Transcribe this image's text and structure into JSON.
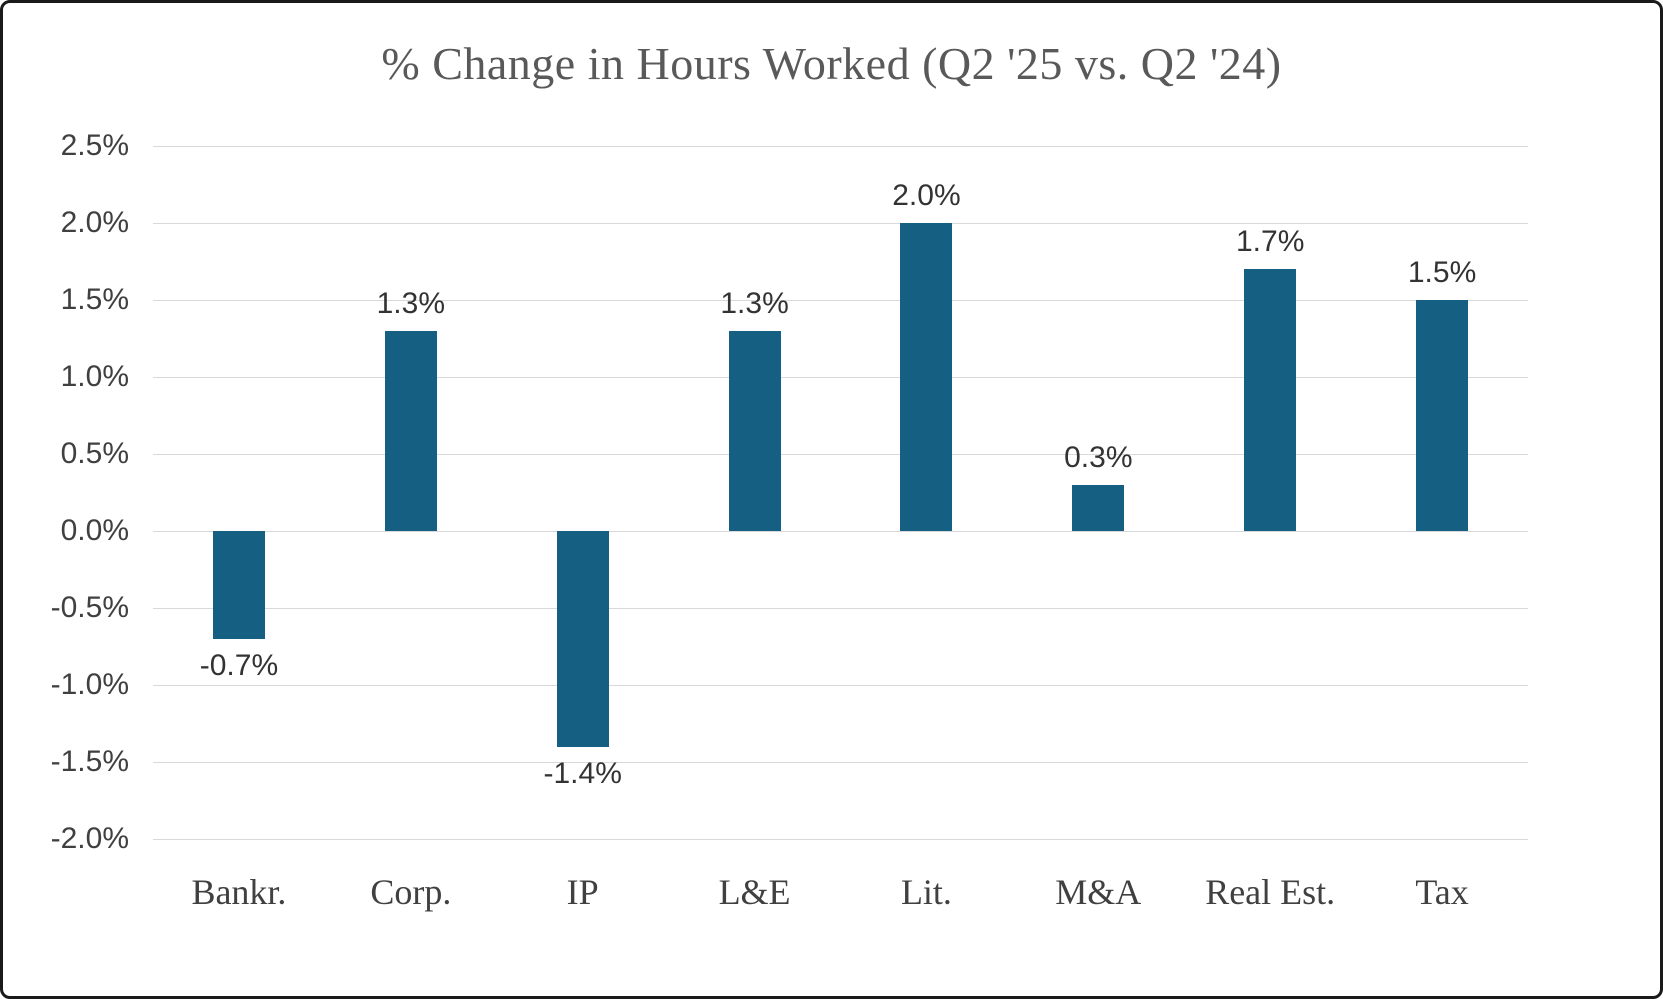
{
  "chart": {
    "title": "% Change in Hours Worked (Q2 '25 vs. Q2 '24)"
  },
  "chart_data": {
    "type": "bar",
    "title": "% Change in Hours Worked (Q2 '25 vs. Q2 '24)",
    "categories": [
      "Bankr.",
      "Corp.",
      "IP",
      "L&E",
      "Lit.",
      "M&A",
      "Real Est.",
      "Tax"
    ],
    "values": [
      -0.7,
      1.3,
      -1.4,
      1.3,
      2.0,
      0.3,
      1.7,
      1.5
    ],
    "value_labels": [
      "-0.7%",
      "1.3%",
      "-1.4%",
      "1.3%",
      "2.0%",
      "0.3%",
      "1.7%",
      "1.5%"
    ],
    "xlabel": "",
    "ylabel": "",
    "ylim": [
      -2.0,
      2.5
    ],
    "ytick_step": 0.5,
    "ytick_labels": [
      "2.5%",
      "2.0%",
      "1.5%",
      "1.0%",
      "0.5%",
      "0.0%",
      "-0.5%",
      "-1.0%",
      "-1.5%",
      "-2.0%"
    ],
    "grid": true,
    "legend": "none",
    "colors": {
      "bar": "#156082",
      "gridline": "#d9d9d9",
      "title": "#595959",
      "tick_label": "#404040",
      "value_label": "#333333",
      "frame_border": "#1a1a1a",
      "background": "#ffffff"
    }
  }
}
